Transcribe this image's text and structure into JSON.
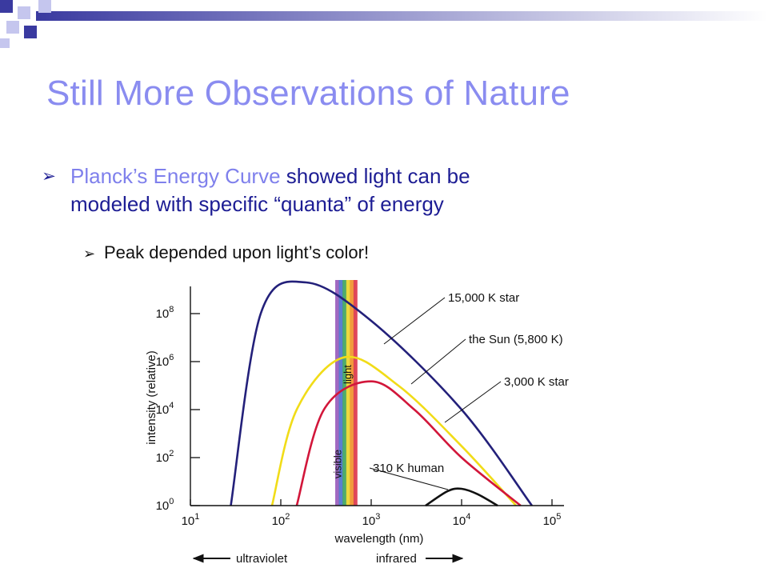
{
  "slide": {
    "title": "Still More Observations of Nature",
    "bullets": [
      {
        "highlight": "Planck’s Energy Curve",
        "line1_rest": " showed light can be",
        "line2": "modeled with specific “quanta” of energy"
      }
    ],
    "sub_bullets": [
      "Peak depended upon light’s color!"
    ],
    "bullet_icon": "arrow-bullet-icon",
    "colors": {
      "title": "#8a8cf0",
      "highlight": "#7f80ec",
      "body": "#1d1d94",
      "decor": "#3a3aa0"
    }
  },
  "chart_data": {
    "type": "line",
    "xlabel": "wavelength (nm)",
    "ylabel": "intensity (relative)",
    "x_scale": "log",
    "y_scale": "log",
    "xlim": [
      10,
      100000
    ],
    "ylim": [
      1,
      1000000000
    ],
    "x_ticks": [
      {
        "base": "10",
        "exp": "1"
      },
      {
        "base": "10",
        "exp": "2"
      },
      {
        "base": "10",
        "exp": "3"
      },
      {
        "base": "10",
        "exp": "4"
      },
      {
        "base": "10",
        "exp": "5"
      }
    ],
    "y_ticks": [
      {
        "base": "10",
        "exp": "0"
      },
      {
        "base": "10",
        "exp": "2"
      },
      {
        "base": "10",
        "exp": "4"
      },
      {
        "base": "10",
        "exp": "6"
      },
      {
        "base": "10",
        "exp": "8"
      }
    ],
    "series": [
      {
        "name": "15,000 K star",
        "color": "#23207a",
        "points": [
          [
            28,
            1
          ],
          [
            60,
            100000000
          ],
          [
            190,
            2000000000
          ],
          [
            1000,
            50000000
          ],
          [
            10000,
            10000
          ],
          [
            60000,
            1
          ]
        ]
      },
      {
        "name": "the Sun (5,800 K)",
        "color": "#f1dc18",
        "points": [
          [
            80,
            1
          ],
          [
            150,
            10000
          ],
          [
            500,
            1500000
          ],
          [
            2000,
            100000
          ],
          [
            10000,
            300
          ],
          [
            40000,
            1
          ]
        ]
      },
      {
        "name": "3,000 K star",
        "color": "#d2163a",
        "points": [
          [
            150,
            1
          ],
          [
            300,
            10000
          ],
          [
            1000,
            150000
          ],
          [
            3000,
            10000
          ],
          [
            10000,
            100
          ],
          [
            45000,
            1
          ]
        ]
      },
      {
        "name": "310 K human",
        "color": "#111111",
        "points": [
          [
            4000,
            1
          ],
          [
            7000,
            4
          ],
          [
            10000,
            5
          ],
          [
            15000,
            3
          ],
          [
            25000,
            1
          ]
        ]
      }
    ],
    "bands": [
      {
        "labels": [
          "visible",
          "light"
        ],
        "range": [
          400,
          700
        ],
        "colors": [
          "#8f4fb6",
          "#3d69c8",
          "#2f9e52",
          "#e7d21d",
          "#ef8a1b",
          "#d9273d"
        ]
      }
    ],
    "arrows": [
      {
        "label": "ultraviolet",
        "direction": "left"
      },
      {
        "label": "infrared",
        "direction": "right"
      }
    ]
  }
}
